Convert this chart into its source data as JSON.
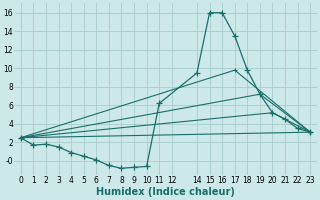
{
  "xlabel": "Humidex (Indice chaleur)",
  "bg_color": "#cce8e8",
  "grid_color": "#aacccc",
  "line_color": "#1a6e6a",
  "xlim": [
    -0.5,
    23.5
  ],
  "ylim": [
    -1.5,
    17.0
  ],
  "xtick_labels": [
    "0",
    "1",
    "2",
    "3",
    "4",
    "5",
    "6",
    "7",
    "8",
    "9",
    "10",
    "11",
    "12",
    "14",
    "15",
    "16",
    "17",
    "18",
    "19",
    "20",
    "21",
    "22",
    "23"
  ],
  "xtick_pos": [
    0,
    1,
    2,
    3,
    4,
    5,
    6,
    7,
    8,
    9,
    10,
    11,
    12,
    14,
    15,
    16,
    17,
    18,
    19,
    20,
    21,
    22,
    23
  ],
  "ytick_labels": [
    "-0",
    "2",
    "4",
    "6",
    "8",
    "10",
    "12",
    "14",
    "16"
  ],
  "ytick_pos": [
    0,
    2,
    4,
    6,
    8,
    10,
    12,
    14,
    16
  ],
  "main_curve": {
    "x": [
      0,
      1,
      2,
      3,
      4,
      5,
      6,
      7,
      8,
      9,
      10,
      11,
      14,
      15,
      16,
      17,
      18,
      19,
      20,
      21,
      22,
      23
    ],
    "y": [
      2.5,
      1.7,
      1.8,
      1.5,
      0.9,
      0.5,
      0.1,
      -0.5,
      -0.8,
      -0.7,
      -0.6,
      6.2,
      9.5,
      16.0,
      16.0,
      13.5,
      9.8,
      7.2,
      5.2,
      4.5,
      3.5,
      3.1
    ]
  },
  "fan_lines": [
    {
      "x": [
        0,
        23
      ],
      "y": [
        2.5,
        3.1
      ]
    },
    {
      "x": [
        0,
        17,
        23
      ],
      "y": [
        2.5,
        9.8,
        3.1
      ]
    },
    {
      "x": [
        0,
        19,
        23
      ],
      "y": [
        2.5,
        7.2,
        3.1
      ]
    },
    {
      "x": [
        0,
        20,
        23
      ],
      "y": [
        2.5,
        5.2,
        3.1
      ]
    }
  ]
}
